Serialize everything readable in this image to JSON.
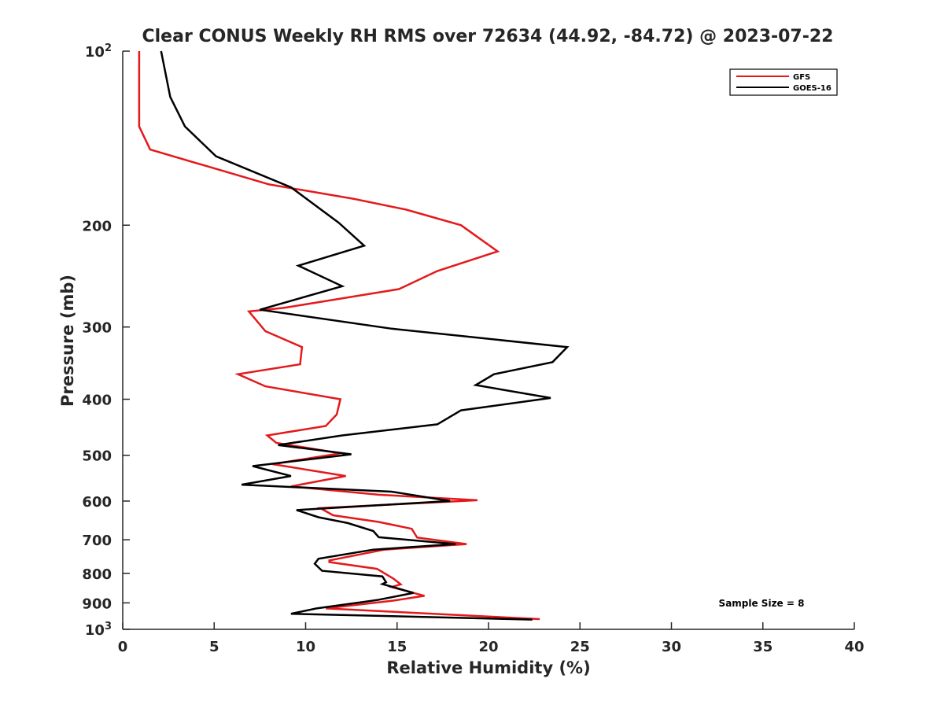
{
  "chart_data": {
    "type": "line",
    "title": "Clear CONUS Weekly RH RMS over 72634 (44.92, -84.72) @ 2023-07-22",
    "xlabel": "Relative Humidity (%)",
    "ylabel": "Pressure (mb)",
    "xlim": [
      0,
      40
    ],
    "ylim": [
      100,
      1000
    ],
    "yscale": "log",
    "y_reversed": true,
    "grid": false,
    "legend_location": "top-right",
    "xticks": [
      0,
      5,
      10,
      15,
      20,
      25,
      30,
      35,
      40
    ],
    "xtick_labels": [
      "0",
      "5",
      "10",
      "15",
      "20",
      "25",
      "30",
      "35",
      "40"
    ],
    "yticks": [
      {
        "value": 100,
        "base": "10",
        "exp": "2"
      },
      {
        "value": 200,
        "label": "200"
      },
      {
        "value": 300,
        "label": "300"
      },
      {
        "value": 400,
        "label": "400"
      },
      {
        "value": 500,
        "label": "500"
      },
      {
        "value": 600,
        "label": "600"
      },
      {
        "value": 700,
        "label": "700"
      },
      {
        "value": 800,
        "label": "800"
      },
      {
        "value": 900,
        "label": "900"
      },
      {
        "value": 1000,
        "base": "10",
        "exp": "3"
      }
    ],
    "annotation": "Sample Size = 8",
    "series": [
      {
        "name": "GFS",
        "color": "#e31a1c",
        "points": [
          [
            0.9,
            100
          ],
          [
            0.9,
            135
          ],
          [
            1.5,
            148
          ],
          [
            8,
            170
          ],
          [
            12.6,
            180
          ],
          [
            15.5,
            188
          ],
          [
            18.5,
            200
          ],
          [
            20.5,
            222
          ],
          [
            17.2,
            240
          ],
          [
            15.1,
            258
          ],
          [
            8.8,
            278
          ],
          [
            6.9,
            282
          ],
          [
            7.8,
            305
          ],
          [
            9.8,
            325
          ],
          [
            9.7,
            348
          ],
          [
            6.3,
            362
          ],
          [
            7.8,
            380
          ],
          [
            11.9,
            400
          ],
          [
            11.7,
            425
          ],
          [
            11.1,
            445
          ],
          [
            7.9,
            462
          ],
          [
            8.4,
            476
          ],
          [
            11.9,
            496
          ],
          [
            8.2,
            518
          ],
          [
            12.2,
            543
          ],
          [
            9.2,
            566
          ],
          [
            14,
            585
          ],
          [
            19.4,
            598
          ],
          [
            10.8,
            617
          ],
          [
            11.5,
            635
          ],
          [
            14,
            652
          ],
          [
            15.8,
            670
          ],
          [
            16.1,
            694
          ],
          [
            18.8,
            712
          ],
          [
            14.3,
            728
          ],
          [
            11.3,
            760
          ],
          [
            11.3,
            765
          ],
          [
            13.9,
            786
          ],
          [
            14.8,
            817
          ],
          [
            15.2,
            836
          ],
          [
            14.7,
            845
          ],
          [
            16.5,
            875
          ],
          [
            14.8,
            892
          ],
          [
            11.1,
            920
          ],
          [
            22.8,
            960
          ]
        ]
      },
      {
        "name": "GOES-16",
        "color": "#000000",
        "points": [
          [
            2.1,
            100
          ],
          [
            2.6,
            120
          ],
          [
            3.4,
            135
          ],
          [
            5.1,
            152
          ],
          [
            9.2,
            172
          ],
          [
            11.8,
            198
          ],
          [
            13.2,
            217
          ],
          [
            9.6,
            235
          ],
          [
            12,
            255
          ],
          [
            7.5,
            280
          ],
          [
            14.7,
            302
          ],
          [
            24.3,
            325
          ],
          [
            23.5,
            345
          ],
          [
            20.3,
            362
          ],
          [
            19.3,
            378
          ],
          [
            23.4,
            398
          ],
          [
            18.5,
            418
          ],
          [
            17.2,
            442
          ],
          [
            12,
            462
          ],
          [
            8.5,
            480
          ],
          [
            12.5,
            498
          ],
          [
            7.1,
            522
          ],
          [
            9.2,
            543
          ],
          [
            6.5,
            562
          ],
          [
            14.7,
            578
          ],
          [
            17.9,
            600
          ],
          [
            9.5,
            622
          ],
          [
            10.7,
            640
          ],
          [
            12.3,
            655
          ],
          [
            13.7,
            676
          ],
          [
            14,
            693
          ],
          [
            18.2,
            712
          ],
          [
            13.7,
            728
          ],
          [
            10.7,
            755
          ],
          [
            10.5,
            770
          ],
          [
            10.9,
            792
          ],
          [
            14.2,
            810
          ],
          [
            14.4,
            829
          ],
          [
            14.2,
            835
          ],
          [
            15.9,
            865
          ],
          [
            13.9,
            890
          ],
          [
            10.6,
            920
          ],
          [
            9.2,
            940
          ],
          [
            22.4,
            962
          ]
        ]
      }
    ]
  }
}
